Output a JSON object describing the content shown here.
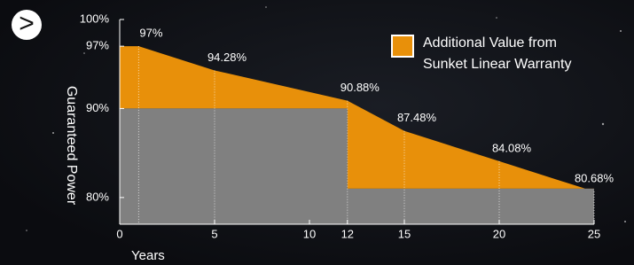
{
  "chart_data": {
    "type": "area",
    "x_label": "Years",
    "y_label": "Guaranteed Power",
    "x": [
      0,
      1,
      5,
      12,
      15,
      20,
      25
    ],
    "series": [
      {
        "name": "Additional Value from Sunket Linear Warranty",
        "color": "#e8900a",
        "values": [
          97,
          97,
          94.28,
          90.88,
          87.48,
          84.08,
          80.68
        ],
        "value_labels": [
          null,
          "97%",
          "94.28%",
          "90.88%",
          "87.48%",
          "84.08%",
          "80.68%"
        ]
      },
      {
        "color": "#808080",
        "x": [
          0,
          12,
          12,
          25
        ],
        "values": [
          90,
          90,
          81,
          81
        ]
      }
    ],
    "xlim": [
      0,
      25
    ],
    "xticks": [
      0,
      5,
      10,
      12,
      15,
      20,
      25
    ],
    "ylim": [
      77,
      100
    ],
    "yticks": [
      {
        "value": 100,
        "label": "100%"
      },
      {
        "value": 97,
        "label": "97%"
      },
      {
        "value": 90,
        "label": "90%"
      },
      {
        "value": 80,
        "label": "80%"
      }
    ]
  }
}
